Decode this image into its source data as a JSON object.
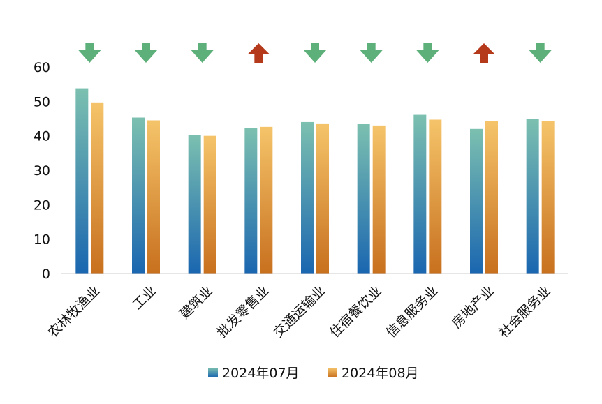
{
  "chart_data": {
    "type": "bar",
    "categories": [
      "农林牧渔业",
      "工业",
      "建筑业",
      "批发零售业",
      "交通运输业",
      "住宿餐饮业",
      "信息服务业",
      "房地产业",
      "社会服务业"
    ],
    "series": [
      {
        "name": "2024年07月",
        "values": [
          53.8,
          45.3,
          40.3,
          42.2,
          44.0,
          43.5,
          46.1,
          42.0,
          45.0
        ]
      },
      {
        "name": "2024年08月",
        "values": [
          49.7,
          44.5,
          40.0,
          42.6,
          43.6,
          43.0,
          44.7,
          44.3,
          44.2
        ]
      }
    ],
    "change_direction": [
      "down",
      "down",
      "down",
      "up",
      "down",
      "down",
      "down",
      "up",
      "down"
    ],
    "y_ticks": [
      "0",
      "10",
      "20",
      "30",
      "40",
      "50",
      "60"
    ],
    "ylim": [
      0,
      60
    ],
    "grid": false,
    "legend_position": "bottom",
    "colors": {
      "series1_top": "#7cc0b0",
      "series1_bottom": "#1a66b0",
      "series2_top": "#f5c46a",
      "series2_bottom": "#c8701e",
      "arrow_down": "#5db07a",
      "arrow_up": "#b53a1c",
      "axis": "#cccccc"
    }
  }
}
